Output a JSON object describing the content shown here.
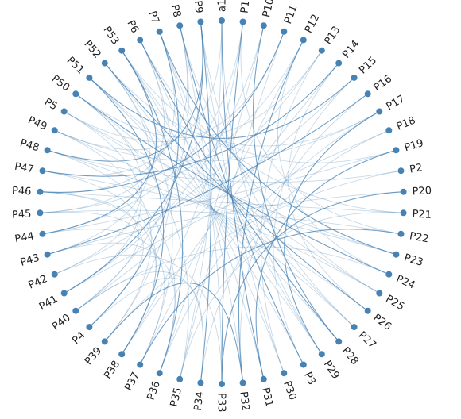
{
  "diagram": {
    "type": "hierarchical-edge-bundling",
    "node_color": "#4682b4",
    "link_color": "#4682b4",
    "nodes": [
      "a1",
      "P1",
      "P10",
      "P11",
      "P12",
      "P13",
      "P14",
      "P15",
      "P16",
      "P17",
      "P18",
      "P19",
      "P2",
      "P20",
      "P21",
      "P22",
      "P23",
      "P24",
      "P25",
      "P26",
      "P27",
      "P28",
      "P29",
      "P3",
      "P30",
      "P31",
      "P32",
      "P33",
      "P34",
      "P35",
      "P36",
      "P37",
      "P38",
      "P39",
      "P4",
      "P40",
      "P41",
      "P42",
      "P43",
      "P44",
      "P45",
      "P46",
      "P47",
      "P48",
      "P49",
      "P5",
      "P50",
      "P51",
      "P52",
      "P53",
      "P6",
      "P7",
      "P8",
      "P9"
    ],
    "links": [
      [
        "P1",
        "P33"
      ],
      [
        "P1",
        "P22"
      ],
      [
        "P1",
        "P44"
      ],
      [
        "P1",
        "P38"
      ],
      [
        "P10",
        "P28"
      ],
      [
        "P10",
        "P41"
      ],
      [
        "P10",
        "P36"
      ],
      [
        "P11",
        "P35"
      ],
      [
        "P11",
        "P46"
      ],
      [
        "P12",
        "P37"
      ],
      [
        "P12",
        "P24"
      ],
      [
        "P12",
        "P45"
      ],
      [
        "P12",
        "P32"
      ],
      [
        "P13",
        "P42"
      ],
      [
        "P13",
        "P30"
      ],
      [
        "P14",
        "P38"
      ],
      [
        "P14",
        "P47"
      ],
      [
        "P14",
        "P26"
      ],
      [
        "P15",
        "P40"
      ],
      [
        "P15",
        "P3"
      ],
      [
        "P16",
        "P43"
      ],
      [
        "P16",
        "P32"
      ],
      [
        "P17",
        "P36"
      ],
      [
        "P17",
        "P49"
      ],
      [
        "P17",
        "P29"
      ],
      [
        "P18",
        "P41"
      ],
      [
        "P18",
        "P34"
      ],
      [
        "P19",
        "P44"
      ],
      [
        "P19",
        "P31"
      ],
      [
        "P2",
        "P39"
      ],
      [
        "P2",
        "P48"
      ],
      [
        "P20",
        "P43"
      ],
      [
        "P20",
        "P33"
      ],
      [
        "P21",
        "P46"
      ],
      [
        "P21",
        "P35"
      ],
      [
        "P22",
        "P45"
      ],
      [
        "P22",
        "P37"
      ],
      [
        "P23",
        "P47"
      ],
      [
        "P23",
        "P5"
      ],
      [
        "P24",
        "P40"
      ],
      [
        "P24",
        "P50"
      ],
      [
        "P25",
        "P48"
      ],
      [
        "P25",
        "P51"
      ],
      [
        "P26",
        "P49"
      ],
      [
        "P26",
        "P52"
      ],
      [
        "P27",
        "P5"
      ],
      [
        "P27",
        "P53"
      ],
      [
        "P28",
        "P50"
      ],
      [
        "P28",
        "P6"
      ],
      [
        "P29",
        "P51"
      ],
      [
        "P29",
        "P7"
      ],
      [
        "P3",
        "P52"
      ],
      [
        "P3",
        "P8"
      ],
      [
        "P30",
        "P53"
      ],
      [
        "P30",
        "P9"
      ],
      [
        "P31",
        "P6"
      ],
      [
        "P31",
        "a1"
      ],
      [
        "P32",
        "P7"
      ],
      [
        "P33",
        "P8"
      ],
      [
        "P33",
        "P42"
      ],
      [
        "P34",
        "P9"
      ],
      [
        "P34",
        "P4"
      ],
      [
        "P35",
        "a1"
      ],
      [
        "P35",
        "P50"
      ],
      [
        "P36",
        "P53"
      ],
      [
        "P36",
        "P48"
      ],
      [
        "P37",
        "P52"
      ],
      [
        "P37",
        "P44"
      ],
      [
        "P38",
        "P51"
      ],
      [
        "P38",
        "P47"
      ],
      [
        "P39",
        "P6"
      ],
      [
        "P39",
        "P49"
      ],
      [
        "P4",
        "P7"
      ],
      [
        "P4",
        "P45"
      ],
      [
        "P40",
        "P8"
      ],
      [
        "P40",
        "P46"
      ],
      [
        "P41",
        "P9"
      ],
      [
        "P41",
        "P5"
      ],
      [
        "P42",
        "P50"
      ],
      [
        "P43",
        "P52"
      ],
      [
        "P44",
        "P53"
      ],
      [
        "P45",
        "P6"
      ],
      [
        "P46",
        "P7"
      ],
      [
        "P47",
        "P8"
      ],
      [
        "P48",
        "P9"
      ],
      [
        "P49",
        "a1"
      ],
      [
        "P5",
        "P11"
      ],
      [
        "P50",
        "P13"
      ],
      [
        "P51",
        "P15"
      ],
      [
        "P52",
        "P17"
      ],
      [
        "P53",
        "P19"
      ],
      [
        "P6",
        "P21"
      ],
      [
        "P7",
        "P23"
      ],
      [
        "P8",
        "P25"
      ],
      [
        "P9",
        "P27"
      ],
      [
        "a1",
        "P29"
      ],
      [
        "P32",
        "P39"
      ],
      [
        "P34",
        "P40"
      ],
      [
        "P36",
        "P43"
      ],
      [
        "P38",
        "P46"
      ]
    ]
  }
}
